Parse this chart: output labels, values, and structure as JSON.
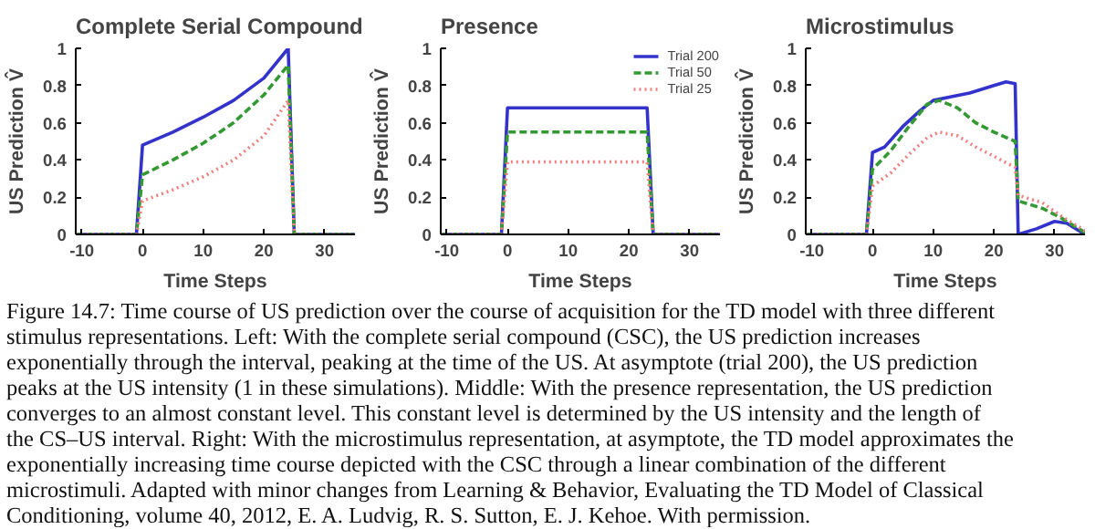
{
  "chart_data": [
    {
      "type": "line",
      "title": "Complete Serial Compound",
      "xlabel": "Time Steps",
      "ylabel": "US Prediction V̂",
      "xlim": [
        -11,
        35
      ],
      "ylim": [
        0,
        1
      ],
      "xticks": [
        -10,
        0,
        10,
        20,
        30
      ],
      "yticks": [
        0,
        0.2,
        0.4,
        0.6,
        0.8,
        1
      ],
      "grid": false,
      "legend": false,
      "series": [
        {
          "color": "#3333cc",
          "line_style": "solid",
          "x": [
            -11,
            -1,
            0,
            5,
            10,
            15,
            20,
            24,
            25,
            35
          ],
          "values": [
            0,
            0,
            0.48,
            0.55,
            0.63,
            0.72,
            0.84,
            1.0,
            0,
            0
          ]
        },
        {
          "color": "#339933",
          "line_style": "dashed",
          "x": [
            -11,
            -1,
            0,
            5,
            10,
            15,
            20,
            24,
            25,
            35
          ],
          "values": [
            0,
            0,
            0.32,
            0.4,
            0.49,
            0.6,
            0.75,
            0.91,
            0,
            0
          ]
        },
        {
          "color": "#f08080",
          "line_style": "dotted",
          "x": [
            -11,
            -1,
            0,
            5,
            10,
            15,
            20,
            24,
            25,
            35
          ],
          "values": [
            0,
            0,
            0.18,
            0.24,
            0.31,
            0.4,
            0.53,
            0.72,
            0,
            0
          ]
        }
      ]
    },
    {
      "type": "line",
      "title": "Presence",
      "xlabel": "Time Steps",
      "ylabel": "US Prediction V̂",
      "xlim": [
        -11,
        35
      ],
      "ylim": [
        0,
        1
      ],
      "xticks": [
        -10,
        0,
        10,
        20,
        30
      ],
      "yticks": [
        0,
        0.2,
        0.4,
        0.6,
        0.8,
        1
      ],
      "grid": false,
      "legend": "top right",
      "series": [
        {
          "name": "Trial 200",
          "color": "#3333cc",
          "line_style": "solid",
          "x": [
            -11,
            -1,
            0,
            23,
            24,
            35
          ],
          "values": [
            0,
            0,
            0.68,
            0.68,
            0,
            0
          ]
        },
        {
          "name": "Trial 50",
          "color": "#339933",
          "line_style": "dashed",
          "x": [
            -11,
            -1,
            0,
            23,
            24,
            35
          ],
          "values": [
            0,
            0,
            0.55,
            0.55,
            0,
            0
          ]
        },
        {
          "name": "Trial 25",
          "color": "#f08080",
          "line_style": "dotted",
          "x": [
            -11,
            -1,
            0,
            23,
            24,
            35
          ],
          "values": [
            0,
            0,
            0.39,
            0.39,
            0,
            0
          ]
        }
      ]
    },
    {
      "type": "line",
      "title": "Microstimulus",
      "xlabel": "Time Steps",
      "ylabel": "US Prediction V̂",
      "xlim": [
        -11,
        35
      ],
      "ylim": [
        0,
        1
      ],
      "xticks": [
        -10,
        0,
        10,
        20,
        30
      ],
      "yticks": [
        0,
        0.2,
        0.4,
        0.6,
        0.8,
        1
      ],
      "grid": false,
      "legend": false,
      "series": [
        {
          "color": "#3333cc",
          "line_style": "solid",
          "x": [
            -11,
            -1,
            0,
            2,
            5,
            8,
            10,
            13,
            16,
            20,
            22,
            23.5,
            24,
            27,
            30,
            32,
            35
          ],
          "values": [
            0,
            0,
            0.44,
            0.47,
            0.58,
            0.67,
            0.72,
            0.74,
            0.76,
            0.8,
            0.82,
            0.81,
            0,
            0.03,
            0.07,
            0.06,
            0
          ]
        },
        {
          "color": "#339933",
          "line_style": "dashed",
          "x": [
            -11,
            -1,
            0,
            3,
            6,
            9,
            11,
            14,
            17,
            20,
            23.5,
            24,
            28,
            31,
            35
          ],
          "values": [
            0,
            0,
            0.35,
            0.45,
            0.58,
            0.7,
            0.72,
            0.68,
            0.6,
            0.55,
            0.5,
            0.18,
            0.14,
            0.09,
            0.01
          ]
        },
        {
          "color": "#f08080",
          "line_style": "dotted",
          "x": [
            -11,
            -1,
            0,
            3,
            6,
            9,
            11,
            14,
            17,
            20,
            23.5,
            24,
            28,
            31,
            35
          ],
          "values": [
            0,
            0,
            0.26,
            0.33,
            0.43,
            0.52,
            0.55,
            0.53,
            0.47,
            0.42,
            0.36,
            0.21,
            0.17,
            0.1,
            0.02
          ]
        }
      ]
    },
    {
      "type": "other",
      "annotations": [
        "Figure 14.7: Time course of US prediction over the course of acquisition for the TD model with three different stimulus representations. Left: With the complete serial compound (CSC), the US prediction increases exponentially through the interval, peaking at the time of the US. At asymptote (trial 200), the US prediction peaks at the US intensity (1 in these simulations). Middle: With the presence representation, the US prediction converges to an almost constant level. This constant level is determined by the US intensity and the length of the CS–US interval. Right: With the microstimulus representation, at asymptote, the TD model approximates the exponentially increasing time course depicted with the CSC through a linear combination of the different microstimuli. Adapted with minor changes from Learning & Behavior, Evaluating the TD Model of Classical Conditioning, volume 40, 2012, E. A. Ludvig, R. S. Sutton, E. J. Kehoe. With permission."
      ]
    }
  ]
}
